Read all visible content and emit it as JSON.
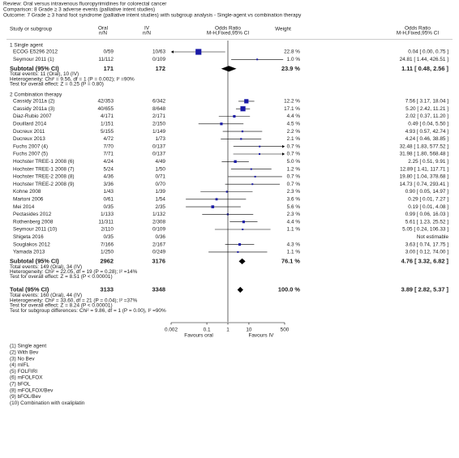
{
  "header": {
    "review": "Review:  Oral versus intravenous fluoropyrimidines for colorectal cancer",
    "comparison": "Comparison: 8 Grade ≥ 3 adverse events (palliative intent studies)",
    "outcome": "Outcome: 7 Grade ≥ 3 hand foot syndrome (palliative intent studies) with subgroup analysis - Single-agent vs combination therapy"
  },
  "columns": {
    "study": "Study or subgroup",
    "oral": "Oral",
    "oral_unit": "n/N",
    "iv": "IV",
    "iv_unit": "n/N",
    "or_plot": "Odds Ratio",
    "or_plot_method": "M-H,Fixed,95% CI",
    "weight": "Weight",
    "or": "Odds Ratio",
    "or_method": "M-H,Fixed,95% CI"
  },
  "chart_data": {
    "type": "forest",
    "log_x": true,
    "xlim": [
      0.002,
      500
    ],
    "xticks": [
      0.002,
      0.1,
      1,
      10,
      500
    ],
    "square_color": "#1a1aa6",
    "favours_left": "Favours oral",
    "favours_right": "Favours IV",
    "groups": [
      {
        "name": "1 Single agent",
        "studies": [
          {
            "study": "ECOG E5296 2012",
            "oral": "0/59",
            "iv": "10/63",
            "weight": 22.8,
            "weight_label": "22.8 %",
            "or": 0.04,
            "ci": [
              0.0,
              0.75
            ],
            "or_label": "0.04 [ 0.00, 0.75 ]"
          },
          {
            "study": "Seymour 2011 (1)",
            "oral": "11/112",
            "iv": "0/109",
            "weight": 1.0,
            "weight_label": "1.0 %",
            "or": 24.81,
            "ci": [
              1.44,
              426.51
            ],
            "or_label": "24.81 [ 1.44, 426.51 ]"
          }
        ],
        "subtotal": {
          "label": "Subtotal (95% CI)",
          "oral": "171",
          "iv": "172",
          "weight_label": "23.9 %",
          "or": 1.11,
          "ci": [
            0.48,
            2.56
          ],
          "or_label": "1.11 [ 0.48, 2.56 ]"
        },
        "notes": [
          "Total events: 11 (Oral), 10 (IV)",
          "Heterogeneity: Chi² = 9.56, df = 1 (P = 0.002); I² =90%",
          "Test for overall effect: Z = 0.25 (P = 0.80)"
        ]
      },
      {
        "name": "2 Combination therapy",
        "studies": [
          {
            "study": "Cassidy 2011a (2)",
            "oral": "42/353",
            "iv": "6/342",
            "weight": 12.2,
            "weight_label": "12.2 %",
            "or": 7.56,
            "ci": [
              3.17,
              18.04
            ],
            "or_label": "7.56 [ 3.17, 18.04 ]"
          },
          {
            "study": "Cassidy 2011a (3)",
            "oral": "40/655",
            "iv": "8/648",
            "weight": 17.1,
            "weight_label": "17.1 %",
            "or": 5.2,
            "ci": [
              2.42,
              11.21
            ],
            "or_label": "5.20 [ 2.42, 11.21 ]"
          },
          {
            "study": "Diaz-Rubio 2007",
            "oral": "4/171",
            "iv": "2/171",
            "weight": 4.4,
            "weight_label": "4.4 %",
            "or": 2.02,
            "ci": [
              0.37,
              11.2
            ],
            "or_label": "2.02 [ 0.37, 11.20 ]"
          },
          {
            "study": "Douillard 2014",
            "oral": "1/151",
            "iv": "2/150",
            "weight": 4.5,
            "weight_label": "4.5 %",
            "or": 0.49,
            "ci": [
              0.04,
              5.5
            ],
            "or_label": "0.49 [ 0.04, 5.50 ]"
          },
          {
            "study": "Ducreux 2011",
            "oral": "5/155",
            "iv": "1/149",
            "weight": 2.2,
            "weight_label": "2.2 %",
            "or": 4.93,
            "ci": [
              0.57,
              42.74
            ],
            "or_label": "4.93 [ 0.57, 42.74 ]"
          },
          {
            "study": "Ducreux 2013",
            "oral": "4/72",
            "iv": "1/73",
            "weight": 2.1,
            "weight_label": "2.1 %",
            "or": 4.24,
            "ci": [
              0.46,
              38.85
            ],
            "or_label": "4.24 [ 0.46, 38.85 ]"
          },
          {
            "study": "Fuchs 2007 (4)",
            "oral": "7/70",
            "iv": "0/137",
            "weight": 0.7,
            "weight_label": "0.7 %",
            "or": 32.48,
            "ci": [
              1.83,
              577.52
            ],
            "or_label": "32.48 [ 1.83, 577.52 ]"
          },
          {
            "study": "Fuchs 2007 (5)",
            "oral": "7/71",
            "iv": "0/137",
            "weight": 0.7,
            "weight_label": "0.7 %",
            "or": 31.98,
            "ci": [
              1.8,
              568.48
            ],
            "or_label": "31.98 [ 1.80, 568.48 ]"
          },
          {
            "study": "Hochster TREE-1 2008 (6)",
            "oral": "4/24",
            "iv": "4/49",
            "weight": 5.0,
            "weight_label": "5.0 %",
            "or": 2.25,
            "ci": [
              0.51,
              9.91
            ],
            "or_label": "2.25 [ 0.51, 9.91 ]"
          },
          {
            "study": "Hochster TREE-1 2008 (7)",
            "oral": "5/24",
            "iv": "1/50",
            "weight": 1.2,
            "weight_label": "1.2 %",
            "or": 12.89,
            "ci": [
              1.41,
              117.71
            ],
            "or_label": "12.89 [ 1.41, 117.71 ]"
          },
          {
            "study": "Hochster TREE-2 2008 (8)",
            "oral": "4/36",
            "iv": "0/71",
            "weight": 0.7,
            "weight_label": "0.7 %",
            "or": 19.8,
            "ci": [
              1.04,
              378.68
            ],
            "or_label": "19.80 [ 1.04, 378.68 ]"
          },
          {
            "study": "Hochster TREE-2 2008 (9)",
            "oral": "3/36",
            "iv": "0/70",
            "weight": 0.7,
            "weight_label": "0.7 %",
            "or": 14.73,
            "ci": [
              0.74,
              293.41
            ],
            "or_label": "14.73 [ 0.74, 293.41 ]"
          },
          {
            "study": "Kohne 2008",
            "oral": "1/43",
            "iv": "1/39",
            "weight": 2.3,
            "weight_label": "2.3 %",
            "or": 0.9,
            "ci": [
              0.05,
              14.97
            ],
            "or_label": "0.90 [ 0.05, 14.97 ]"
          },
          {
            "study": "Martoni 2006",
            "oral": "0/61",
            "iv": "1/54",
            "weight": 3.6,
            "weight_label": "3.6 %",
            "or": 0.29,
            "ci": [
              0.01,
              7.27
            ],
            "or_label": "0.29 [ 0.01, 7.27 ]"
          },
          {
            "study": "Mei 2014",
            "oral": "0/35",
            "iv": "2/35",
            "weight": 5.6,
            "weight_label": "5.6 %",
            "or": 0.19,
            "ci": [
              0.01,
              4.08
            ],
            "or_label": "0.19 [ 0.01, 4.08 ]"
          },
          {
            "study": "Pectasides 2012",
            "oral": "1/133",
            "iv": "1/132",
            "weight": 2.3,
            "weight_label": "2.3 %",
            "or": 0.99,
            "ci": [
              0.06,
              16.03
            ],
            "or_label": "0.99 [ 0.06, 16.03 ]"
          },
          {
            "study": "Rothenberg 2008",
            "oral": "11/311",
            "iv": "2/308",
            "weight": 4.4,
            "weight_label": "4.4 %",
            "or": 5.61,
            "ci": [
              1.23,
              25.52
            ],
            "or_label": "5.61 [ 1.23, 25.52 ]"
          },
          {
            "study": "Seymour 2011 (10)",
            "oral": "2/110",
            "iv": "0/109",
            "weight": 1.1,
            "weight_label": "1.1 %",
            "or": 5.05,
            "ci": [
              0.24,
              106.33
            ],
            "or_label": "5.05 [ 0.24, 106.33 ]"
          },
          {
            "study": "Shigeta 2016",
            "oral": "0/35",
            "iv": "0/36",
            "or_label": "Not estimable"
          },
          {
            "study": "Souglakos 2012",
            "oral": "7/166",
            "iv": "2/167",
            "weight": 4.3,
            "weight_label": "4.3 %",
            "or": 3.63,
            "ci": [
              0.74,
              17.75
            ],
            "or_label": "3.63 [ 0.74, 17.75 ]"
          },
          {
            "study": "Yamada 2013",
            "oral": "1/250",
            "iv": "0/249",
            "weight": 1.1,
            "weight_label": "1.1 %",
            "or": 3.0,
            "ci": [
              0.12,
              74.0
            ],
            "or_label": "3.00 [ 0.12, 74.00 ]"
          }
        ],
        "subtotal": {
          "label": "Subtotal (95% CI)",
          "oral": "2962",
          "iv": "3176",
          "weight_label": "76.1 %",
          "or": 4.76,
          "ci": [
            3.32,
            6.82
          ],
          "or_label": "4.76 [ 3.32, 6.82 ]"
        },
        "notes": [
          "Total events: 149 (Oral), 34 (IV)",
          "Heterogeneity: Chi² = 22.05, df = 19 (P = 0.28); I² =14%",
          "Test for overall effect: Z = 8.51 (P < 0.00001)"
        ]
      }
    ],
    "total": {
      "label": "Total (95% CI)",
      "oral": "3133",
      "iv": "3348",
      "weight_label": "100.0 %",
      "or": 3.89,
      "ci": [
        2.82,
        5.37
      ],
      "or_label": "3.89 [ 2.82, 5.37 ]",
      "notes": [
        "Total events: 160 (Oral), 44 (IV)",
        "Heterogeneity: Chi² = 33.60, df = 21 (P = 0.04); I² =37%",
        "Test for overall effect: Z = 8.24 (P < 0.00001)",
        "Test for subgroup differences: Chi² = 9.86, df = 1 (P = 0.00), I² =90%"
      ]
    }
  },
  "footnotes": [
    "(1) Single agent",
    "(2) With Bev",
    "(3) No Bev",
    "(4) mIFL",
    "(5) FOLFIRI",
    "(6) mFOLFOX",
    "(7) bFOL",
    "(8) mFOLFOX/Bev",
    "(9) bFOL/Bev",
    "(10) Combination with oxaliplatin"
  ]
}
